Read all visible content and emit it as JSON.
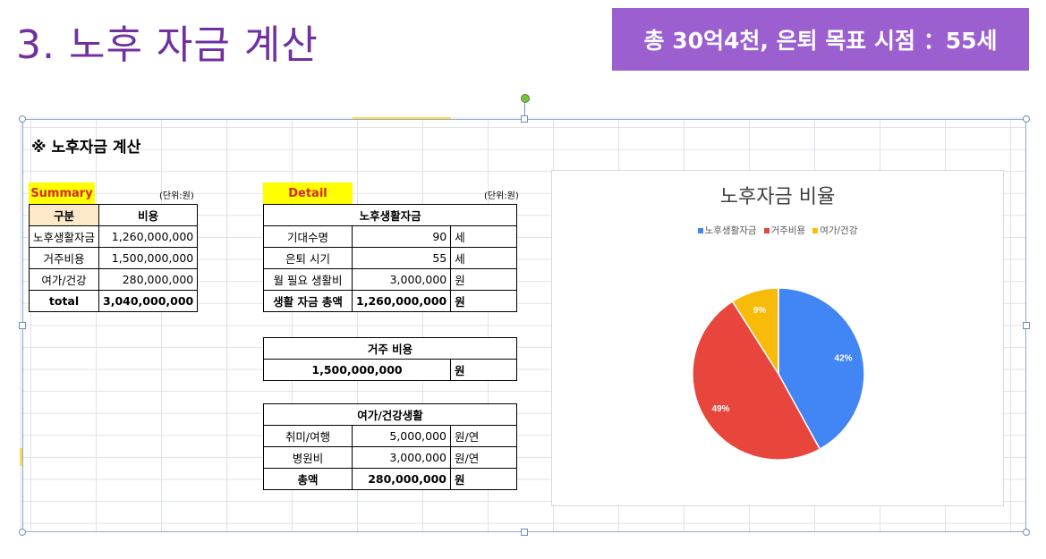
{
  "slide": {
    "title": "3. 노후 자금 계산",
    "banner": "총 30억4천, 은퇴 목표 시점 ：55세"
  },
  "sheet": {
    "heading": "※ 노후자금 계산",
    "summary": {
      "label": "Summary",
      "unit": "(단위:원)",
      "headers": [
        "구분",
        "비용"
      ],
      "rows": [
        {
          "name": "노후생활자금",
          "value": "1,260,000,000"
        },
        {
          "name": "거주비용",
          "value": "1,500,000,000"
        },
        {
          "name": "여가/건강",
          "value": "280,000,000"
        }
      ],
      "total": {
        "name": "total",
        "value": "3,040,000,000"
      }
    },
    "detail": {
      "label": "Detail",
      "unit": "(단위:원)",
      "living": {
        "title": "노후생활자금",
        "rows": [
          {
            "name": "기대수명",
            "value": "90",
            "unit": "세"
          },
          {
            "name": "은퇴 시기",
            "value": "55",
            "unit": "세"
          },
          {
            "name": "월 필요 생활비",
            "value": "3,000,000",
            "unit": "원"
          }
        ],
        "total": {
          "name": "생활 자금 총액",
          "value": "1,260,000,000",
          "unit": "원"
        }
      },
      "housing": {
        "title": "거주 비용",
        "value": "1,500,000,000",
        "unit": "원"
      },
      "leisure": {
        "title": "여가/건강생활",
        "rows": [
          {
            "name": "취미/여행",
            "value": "5,000,000",
            "unit": "원/연"
          },
          {
            "name": "병원비",
            "value": "3,000,000",
            "unit": "원/연"
          }
        ],
        "total": {
          "name": "총액",
          "value": "280,000,000",
          "unit": "원"
        }
      }
    }
  },
  "chart_data": {
    "type": "pie",
    "title": "노후자금 비율",
    "legend_position": "top",
    "categories": [
      "노후생활자금",
      "거주비용",
      "여가/건강"
    ],
    "values": [
      42,
      49,
      9
    ],
    "labels": [
      "42%",
      "49%",
      "9%"
    ],
    "colors": [
      "#4285f4",
      "#e8453c",
      "#f9bb0a"
    ]
  }
}
